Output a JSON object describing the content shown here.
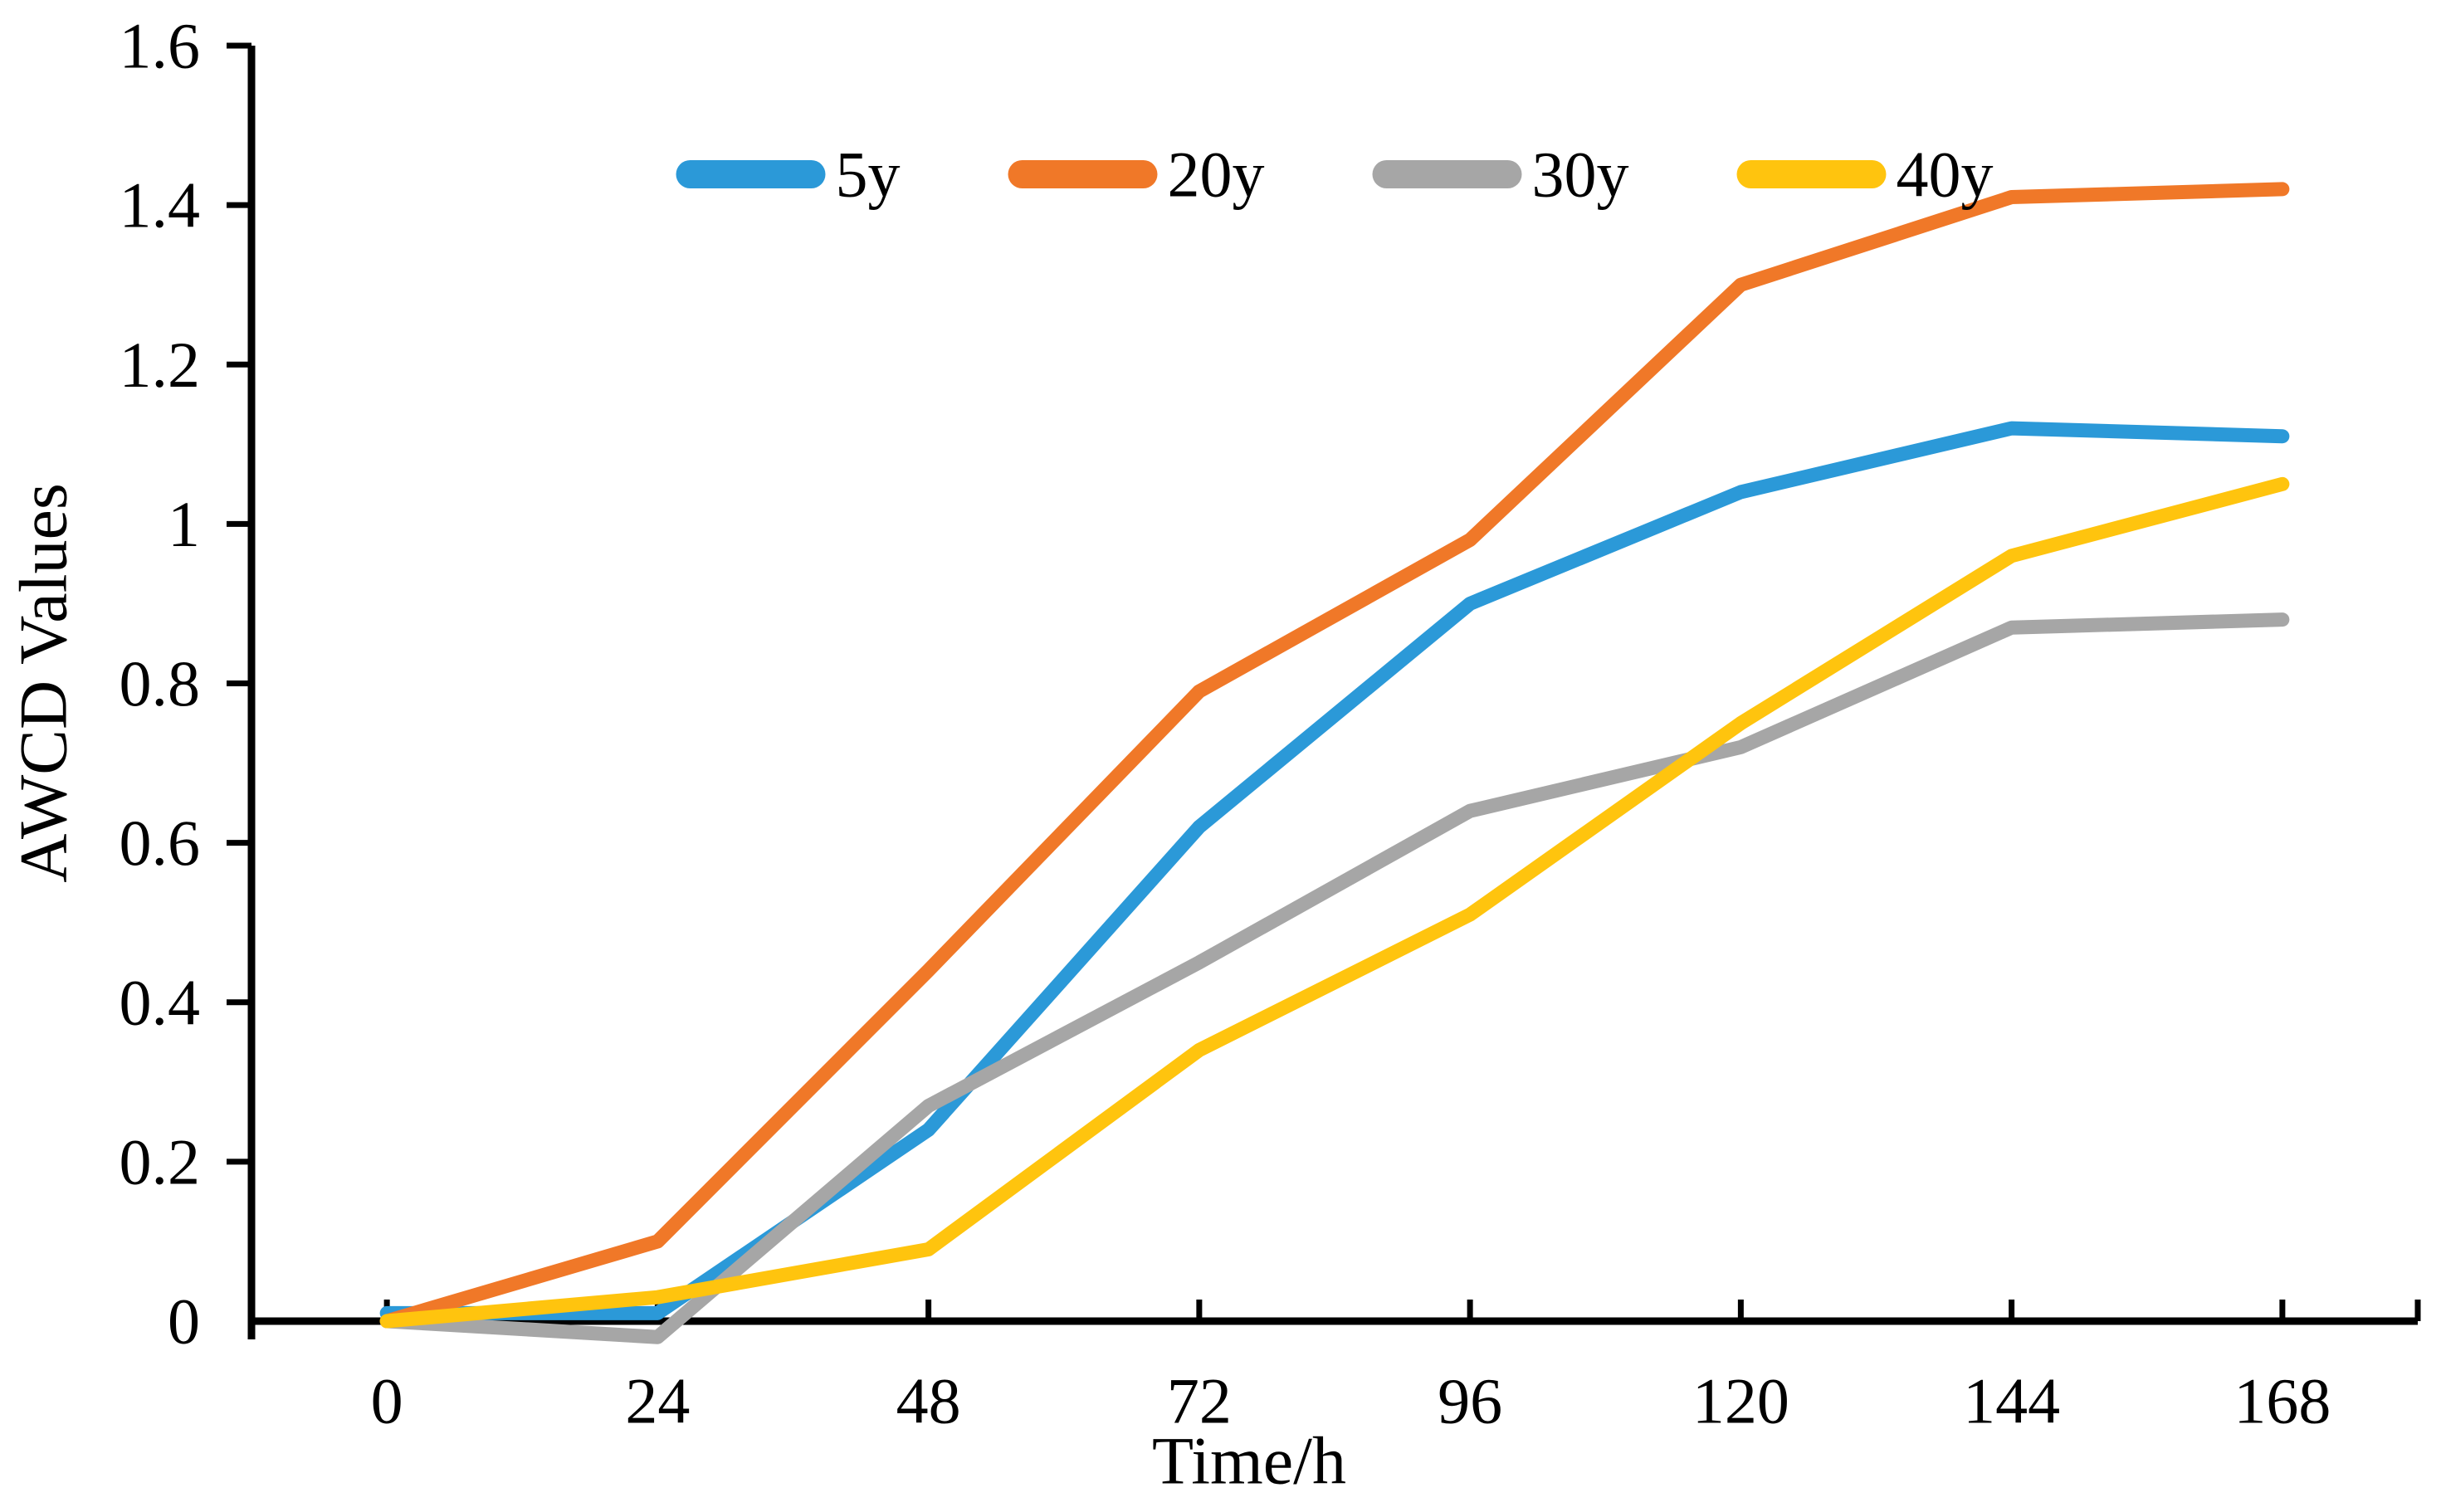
{
  "chart_data": {
    "type": "line",
    "title": "",
    "xlabel": "Time/h",
    "ylabel": "AWCD Values",
    "categories": [
      "0",
      "24",
      "48",
      "72",
      "96",
      "120",
      "144",
      "168"
    ],
    "y_ticks": [
      "0",
      "0.2",
      "0.4",
      "0.6",
      "0.8",
      "1",
      "1.2",
      "1.4",
      "1.6"
    ],
    "ylim": [
      0,
      1.6
    ],
    "xlim_hours": [
      0,
      168
    ],
    "grid": false,
    "legend_position": "top-center",
    "axis_color": "#000000",
    "background_color": "#ffffff",
    "series": [
      {
        "name": "5y",
        "color": "#2B99D8",
        "values": [
          0.01,
          0.01,
          0.24,
          0.62,
          0.9,
          1.04,
          1.12,
          1.11
        ]
      },
      {
        "name": "20y",
        "color": "#F07828",
        "values": [
          0.0,
          0.1,
          0.44,
          0.79,
          0.98,
          1.3,
          1.41,
          1.42
        ]
      },
      {
        "name": "30y",
        "color": "#A6A6A6",
        "values": [
          0.0,
          -0.02,
          0.27,
          0.45,
          0.64,
          0.72,
          0.87,
          0.88
        ]
      },
      {
        "name": "40y",
        "color": "#FFC40E",
        "values": [
          0.0,
          0.03,
          0.09,
          0.34,
          0.51,
          0.75,
          0.96,
          1.05
        ]
      }
    ]
  }
}
